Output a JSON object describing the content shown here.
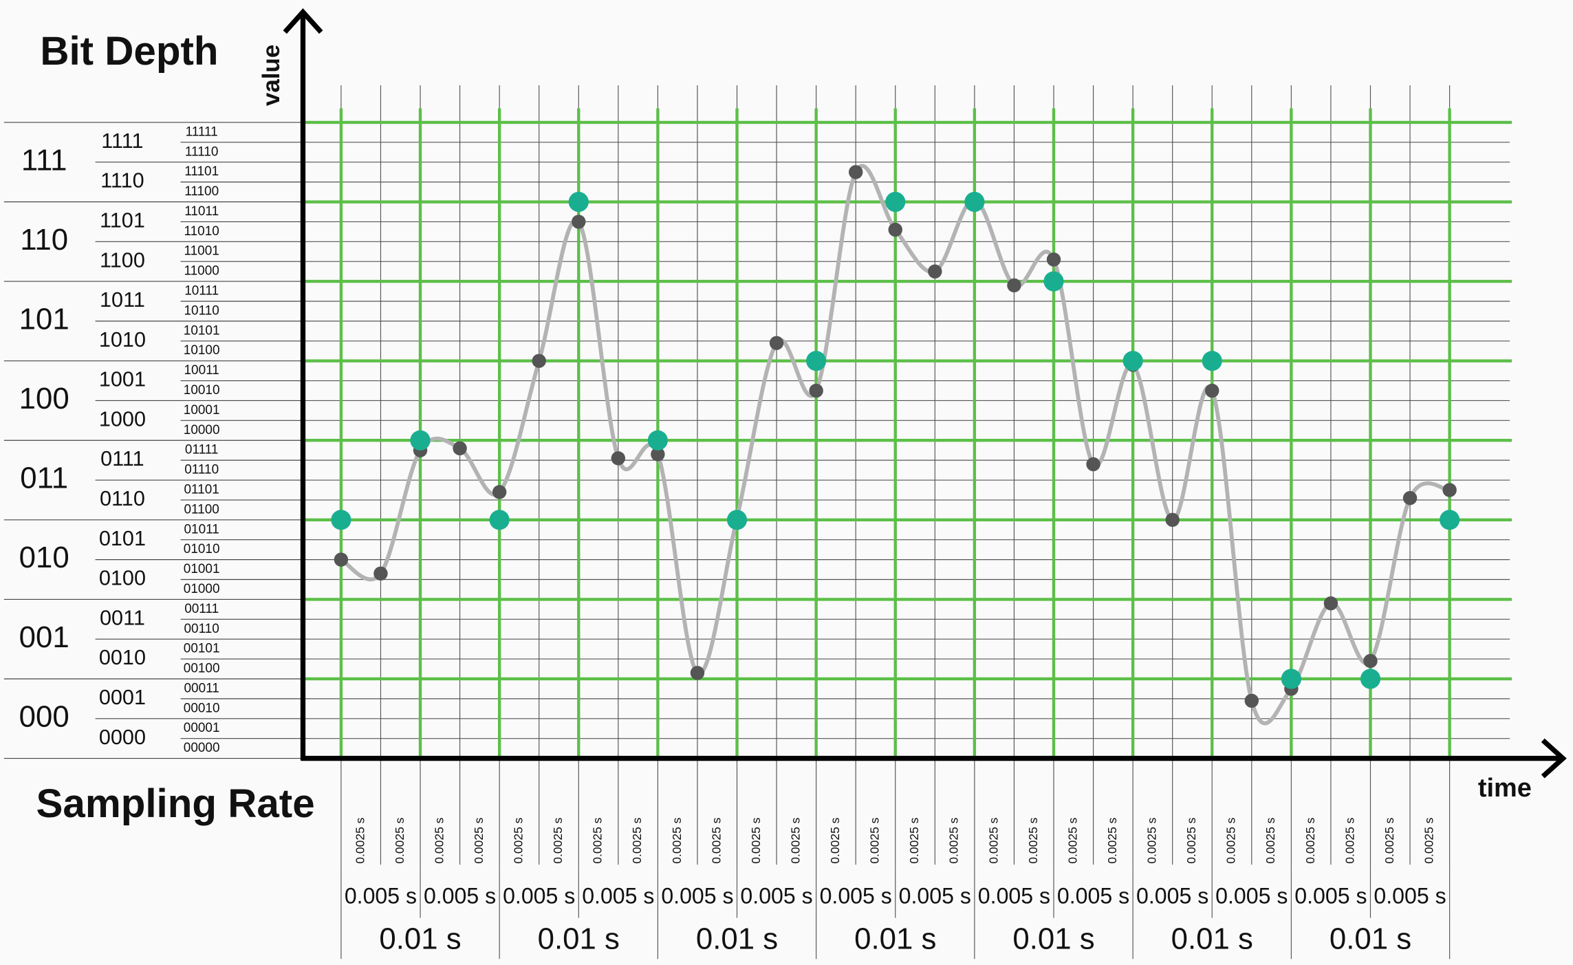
{
  "header": {
    "title": "Bit Depth",
    "y_axis": "value"
  },
  "footer": {
    "title": "Sampling Rate",
    "x_axis": "time"
  },
  "levels_3bit": [
    "111",
    "110",
    "101",
    "100",
    "011",
    "010",
    "001",
    "000"
  ],
  "levels_4bit": [
    "1111",
    "1110",
    "1101",
    "1100",
    "1011",
    "1010",
    "1001",
    "1000",
    "0111",
    "0110",
    "0101",
    "0100",
    "0011",
    "0010",
    "0001",
    "0000"
  ],
  "levels_5bit": [
    "11111",
    "11110",
    "11101",
    "11100",
    "11011",
    "11010",
    "11001",
    "11000",
    "10111",
    "10110",
    "10101",
    "10100",
    "10011",
    "10010",
    "10001",
    "10000",
    "01111",
    "01110",
    "01101",
    "01100",
    "01011",
    "01010",
    "01001",
    "01000",
    "00111",
    "00110",
    "00101",
    "00100",
    "00011",
    "00010",
    "00001",
    "00000"
  ],
  "intervals_quarter": [
    "0.0025 s",
    "0.0025 s",
    "0.0025 s",
    "0.0025 s",
    "0.0025 s",
    "0.0025 s",
    "0.0025 s",
    "0.0025 s",
    "0.0025 s",
    "0.0025 s",
    "0.0025 s",
    "0.0025 s",
    "0.0025 s",
    "0.0025 s",
    "0.0025 s",
    "0.0025 s",
    "0.0025 s",
    "0.0025 s",
    "0.0025 s",
    "0.0025 s",
    "0.0025 s",
    "0.0025 s",
    "0.0025 s",
    "0.0025 s",
    "0.0025 s",
    "0.0025 s",
    "0.0025 s",
    "0.0025 s"
  ],
  "intervals_half": [
    "0.005 s",
    "0.005 s",
    "0.005 s",
    "0.005 s",
    "0.005 s",
    "0.005 s",
    "0.005 s",
    "0.005 s",
    "0.005 s",
    "0.005 s",
    "0.005 s",
    "0.005 s",
    "0.005 s",
    "0.005 s"
  ],
  "intervals_whole": [
    "0.01 s",
    "0.01 s",
    "0.01 s",
    "0.01 s",
    "0.01 s",
    "0.01 s",
    "0.01 s"
  ],
  "samples_5bit": [
    10,
    9.3,
    15.5,
    15.6,
    13.4,
    20,
    27,
    15.1,
    15.3,
    4.3,
    12.1,
    20.9,
    18.5,
    29.5,
    26.6,
    24.5,
    28.1,
    23.8,
    25.1,
    14.8,
    19.8,
    12,
    18.5,
    2.9,
    3.5,
    7.8,
    4.9,
    13.1,
    13.5
  ],
  "samples_3bit": [
    3,
    4,
    3,
    7,
    4,
    3,
    5,
    7,
    7,
    6,
    5,
    5,
    1,
    1,
    3
  ]
}
